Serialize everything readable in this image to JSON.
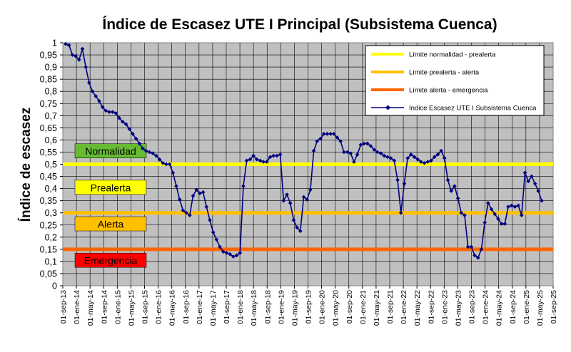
{
  "chart_data": {
    "type": "line",
    "title": "Índice de Escasez UTE I Principal (Subsistema Cuenca)",
    "ylabel": "Índice de escasez",
    "xlabel": "",
    "ylim": [
      0,
      1
    ],
    "yticks": [
      "0",
      "0,05",
      "0,1",
      "0,15",
      "0,2",
      "0,25",
      "0,3",
      "0,35",
      "0,4",
      "0,45",
      "0,5",
      "0,55",
      "0,6",
      "0,65",
      "0,7",
      "0,75",
      "0,8",
      "0,85",
      "0,9",
      "0,95",
      "1"
    ],
    "xticks": [
      "01-sep-13",
      "01-ene-14",
      "01-may-14",
      "01-sep-14",
      "01-ene-15",
      "01-may-15",
      "01-sep-15",
      "01-ene-16",
      "01-may-16",
      "01-sep-16",
      "01-ene-17",
      "01-may-17",
      "01-sep-17",
      "01-ene-18",
      "01-may-18",
      "01-sep-18",
      "01-ene-19",
      "01-may-19",
      "01-sep-19",
      "01-ene-20",
      "01-may-20",
      "01-sep-20",
      "01-ene-21",
      "01-may-21",
      "01-sep-21",
      "01-ene-22",
      "01-may-22",
      "01-sep-22",
      "01-ene-23",
      "01-may-23",
      "01-sep-23",
      "01-ene-24",
      "01-may-24",
      "01-sep-24",
      "01-ene-25",
      "01-may-25",
      "01-sep-25"
    ],
    "grid": true,
    "legend_position": "top-right",
    "thresholds": [
      {
        "name": "Límite normalidad - prealerta",
        "value": 0.5,
        "color": "#ffff00"
      },
      {
        "name": "Límite prealerta - alerta",
        "value": 0.3,
        "color": "#ffc000"
      },
      {
        "name": "Límite alerta - emergencia",
        "value": 0.15,
        "color": "#ff6600"
      }
    ],
    "zones": [
      {
        "label": "Normalidad",
        "bg": "#66bb33",
        "value": 0.555
      },
      {
        "label": "Prealerta",
        "bg": "#ffff00",
        "value": 0.405
      },
      {
        "label": "Alerta",
        "bg": "#ffc000",
        "value": 0.255
      },
      {
        "label": "Emergencia",
        "bg": "#ff0000",
        "value": 0.105
      }
    ],
    "series": [
      {
        "name": "Indice Escasez UTE I Subsistema Cuenca",
        "color": "#000080",
        "values": [
          0.995,
          0.99,
          0.95,
          0.945,
          0.93,
          0.975,
          0.9,
          0.835,
          0.8,
          0.78,
          0.76,
          0.735,
          0.72,
          0.715,
          0.715,
          0.71,
          0.69,
          0.675,
          0.665,
          0.645,
          0.625,
          0.605,
          0.585,
          0.565,
          0.555,
          0.55,
          0.545,
          0.535,
          0.52,
          0.505,
          0.5,
          0.5,
          0.465,
          0.41,
          0.355,
          0.31,
          0.3,
          0.29,
          0.37,
          0.395,
          0.38,
          0.385,
          0.325,
          0.27,
          0.22,
          0.19,
          0.16,
          0.14,
          0.135,
          0.13,
          0.12,
          0.125,
          0.135,
          0.41,
          0.515,
          0.52,
          0.535,
          0.52,
          0.515,
          0.51,
          0.51,
          0.53,
          0.535,
          0.535,
          0.54,
          0.35,
          0.375,
          0.34,
          0.27,
          0.24,
          0.225,
          0.365,
          0.355,
          0.395,
          0.555,
          0.595,
          0.605,
          0.625,
          0.625,
          0.625,
          0.625,
          0.61,
          0.595,
          0.55,
          0.55,
          0.545,
          0.51,
          0.54,
          0.58,
          0.585,
          0.585,
          0.575,
          0.56,
          0.55,
          0.545,
          0.535,
          0.53,
          0.525,
          0.515,
          0.435,
          0.3,
          0.42,
          0.525,
          0.54,
          0.53,
          0.52,
          0.51,
          0.505,
          0.51,
          0.515,
          0.53,
          0.54,
          0.555,
          0.525,
          0.435,
          0.39,
          0.41,
          0.36,
          0.3,
          0.29,
          0.16,
          0.16,
          0.125,
          0.115,
          0.15,
          0.26,
          0.34,
          0.315,
          0.295,
          0.275,
          0.255,
          0.255,
          0.325,
          0.33,
          0.325,
          0.33,
          0.29,
          0.465,
          0.43,
          0.45,
          0.42,
          0.39,
          0.35
        ]
      }
    ]
  }
}
